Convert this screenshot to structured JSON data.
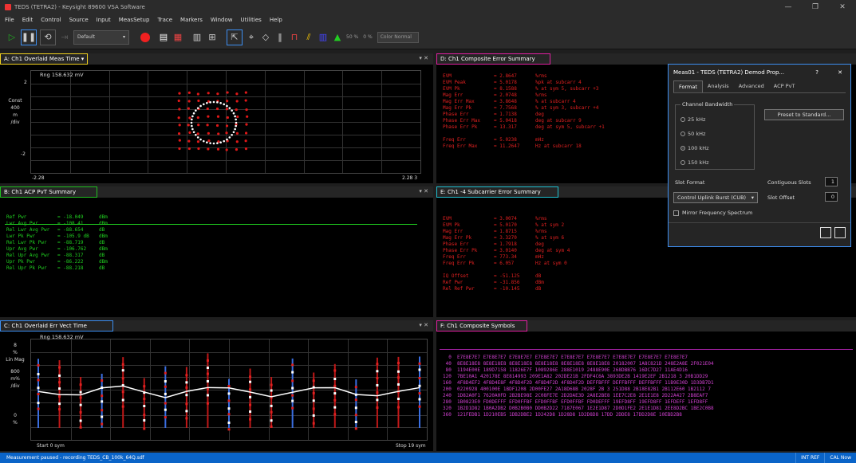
{
  "window": {
    "title": "TEDS (TETRA2) - Keysight 89600 VSA Software",
    "controls": [
      "—",
      "❐",
      "✕"
    ]
  },
  "menu": [
    "File",
    "Edit",
    "Control",
    "Source",
    "Input",
    "MeasSetup",
    "Trace",
    "Markers",
    "Window",
    "Utilities",
    "Help"
  ],
  "toolbar": {
    "preset": "Default",
    "zoom_pct": "50 %",
    "zero_pct": "0 %",
    "color_mode": "Color Normal"
  },
  "panes": {
    "a": {
      "title": "A: Ch1 Overlaid Meas Time",
      "rng": "Rng 158.632 mV",
      "ylabels": [
        "2",
        "Const",
        "400",
        "m",
        "/div",
        "-2"
      ],
      "xleft": "-2.28",
      "xright": "2.28 3",
      "accent": "#f0d020"
    },
    "b": {
      "title": "B: Ch1 ACP PvT Summary",
      "accent": "#20c020",
      "rows": [
        {
          "k": "Ref Pwr",
          "v": "= -18.049",
          "u": "dBm"
        },
        {
          "k": "Lwr Avg Pwr",
          "v": "= -108.41",
          "u": "dBm"
        },
        {
          "k": "Rel Lwr Avg Pwr",
          "v": "= -88.654",
          "u": "dB"
        },
        {
          "k": "Lwr Pk Pwr",
          "v": "= -105.9 dB",
          "u": "dBm"
        },
        {
          "k": "Rel Lwr Pk Pwr",
          "v": "= -88.719",
          "u": "dB"
        },
        {
          "k": "Upr Avg Pwr",
          "v": "= -106.762",
          "u": "dBm"
        },
        {
          "k": "Rel Upr Avg Pwr",
          "v": "= -88.317",
          "u": "dB"
        },
        {
          "k": "Upr Pk Pwr",
          "v": "= -86.222",
          "u": "dBm"
        },
        {
          "k": "Rel Upr Pk Pwr",
          "v": "= -88.218",
          "u": "dB"
        }
      ]
    },
    "c": {
      "title": "C: Ch1 Overlaid Err Vect Time",
      "rng": "Rng 158.632 mV",
      "ylabels": [
        "8",
        "%",
        "Lin Mag",
        "800",
        "m%",
        "/div",
        "0",
        "%"
      ],
      "xleft": "Start 0 sym",
      "xright": "Stop 19 sym",
      "accent": "#3d8ef0"
    },
    "d": {
      "title": "D: Ch1 Composite Error Summary",
      "accent": "#e020a0",
      "rows": [
        {
          "k": "EVM",
          "v": "= 2.8647",
          "u": "%rms"
        },
        {
          "k": "EVM Peak",
          "v": "= 5.0178",
          "u": "%pk at subcarr 4"
        },
        {
          "k": "EVM Pk",
          "v": "= 8.1588",
          "u": "% at sym 5, subcarr +3"
        },
        {
          "k": "Mag Err",
          "v": "= 2.0748",
          "u": "%rms"
        },
        {
          "k": "Mag Err Max",
          "v": "= 3.8648",
          "u": "% at subcarr 4"
        },
        {
          "k": "Mag Err Pk",
          "v": "= 7.7568",
          "u": "% at sym 3, subcarr +4"
        },
        {
          "k": "Phase Err",
          "v": "= 1.7138",
          "u": "deg"
        },
        {
          "k": "Phase Err Max",
          "v": "= 5.0418",
          "u": "deg at subcarr 9"
        },
        {
          "k": "Phase Err Pk",
          "v": "= 13.317",
          "u": "deg at sym 5, subcarr +1"
        },
        {
          "k": "",
          "v": "",
          "u": ""
        },
        {
          "k": "Freq Err",
          "v": "= 5.0238",
          "u": "mHz"
        },
        {
          "k": "Freq Err Max",
          "v": "= 11.2647",
          "u": "Hz at subcarr 18"
        }
      ]
    },
    "e": {
      "title": "E: Ch1 -4 Subcarrier Error Summary",
      "accent": "#20c0d0",
      "rows": [
        {
          "k": "EVM",
          "v": "= 3.0074",
          "u": "%rms"
        },
        {
          "k": "EVM Pk",
          "v": "= 5.0170",
          "u": "% at sym 2"
        },
        {
          "k": "Mag Err",
          "v": "= 1.8715",
          "u": "%rms"
        },
        {
          "k": "Mag Err Pk",
          "v": "= 3.3270",
          "u": "% at sym 6"
        },
        {
          "k": "Phase Err",
          "v": "= 1.7918",
          "u": "deg"
        },
        {
          "k": "Phase Err Pk",
          "v": "= 3.0140",
          "u": "deg at sym 4"
        },
        {
          "k": "Freq Err",
          "v": "= 773.34",
          "u": "mHz"
        },
        {
          "k": "Freq Err Pk",
          "v": "= 6.057",
          "u": "Hz at sym 0"
        },
        {
          "k": "",
          "v": "",
          "u": ""
        },
        {
          "k": "IQ Offset",
          "v": "= -51.125",
          "u": "dB"
        },
        {
          "k": "Ref Pwr",
          "v": "= -31.856",
          "u": "dBm"
        },
        {
          "k": "Rel Ref Pwr",
          "v": "= -10.145",
          "u": "dB"
        }
      ]
    },
    "f": {
      "title": "F: Ch1 Composite Symbols",
      "accent": "#e020a0",
      "lines": [
        "  0  E7E8E7E7 E7E8E7E7 E7E8E7E7 E7E8E7E7 E7E8E7E7 E7E8E7E7 E7E8E7E7 E7E8E7E7 E7E8E7E7",
        " 40  8E8E18E8 8E8E18E8 8E8E18E8 8E8E18E8 8E8E18E8 8E8E18E8 20182007 1A8C821D 248E2A8E 2F021E04",
        " 80  1194E00E 189D7158 11826E7F 1089286E 288E1019 2488E90E 268DBB76 16DC7D27 11AE4D16",
        "120  7BE10A1 420178E 8E814993 209E1A82 202DE21B 2FDF4C6A 3893DE2B 1419E2EF 2B1218 3 20B1DD29",
        "160  4F8D4EF2 4F8D4E8F 4F8D4F2D 4F8D4F2D 4F8D4F2D DEFFBFFF DEFFBFFF DEFFBFFF 11B9E30D 1D3DB7D1",
        "200  0220928 400100E 1BDF1208 2D00FE27 2A18D68B 2028F 2B 3 251D88 2B18E82B1 2B112E60 1B2112 7",
        "240  1D82A0F1 7620A0FD 2B2BE98E 2C08FE7E 2D2DAE3D 2A8E2BE8 1EE7C2E8 2E1E1E8 2D22A427 2B8EAF7",
        "280  1B0823E0 FD0DEFFF EFD0FFBF EFD0FFBF EFD0FFBF FD0DEFFF 19EFD8FF 19EFD8FF 1EFDEFF 1EFD8FF",
        "320  1B2D1D82 1B0A2DB2 D0B2B0B0 DD0B2D22 7187E067 1E2E1D87 2D0D1FE2 2E1E1D81 2EE8D2BC 1BE2C0B8",
        "360  121FEDB1 1D210EB5 1DB2DBE2 1D242D8 1D28D8 1D2D8D8 17DD 2DDE8 17DD2D8E 10EBD2B8"
      ]
    }
  },
  "dialog": {
    "title": "Meas01 - TEDS (TETRA2) Demod Prop...",
    "help": "?",
    "close": "✕",
    "tabs": [
      "Format",
      "Analysis",
      "Advanced",
      "ACP PvT"
    ],
    "bandwidth_legend": "Channel Bandwidth",
    "bandwidths": [
      "25 kHz",
      "50 kHz",
      "100 kHz",
      "150 kHz"
    ],
    "selected_bandwidth": "100 kHz",
    "preset_button": "Preset to Standard...",
    "slot_format_label": "Slot Format",
    "slot_format_value": "Control Uplink Burst (CUB)",
    "contiguous_label": "Contiguous Slots",
    "contiguous_value": "1",
    "slot_offset_label": "Slot Offset",
    "slot_offset_value": "0",
    "mirror_label": "Mirror Frequency Spectrum"
  },
  "status": {
    "message": "Measurement paused - recording TEDS_CB_100k_64Q.sdf",
    "ref": "INT REF",
    "cal": "CAL Now"
  }
}
